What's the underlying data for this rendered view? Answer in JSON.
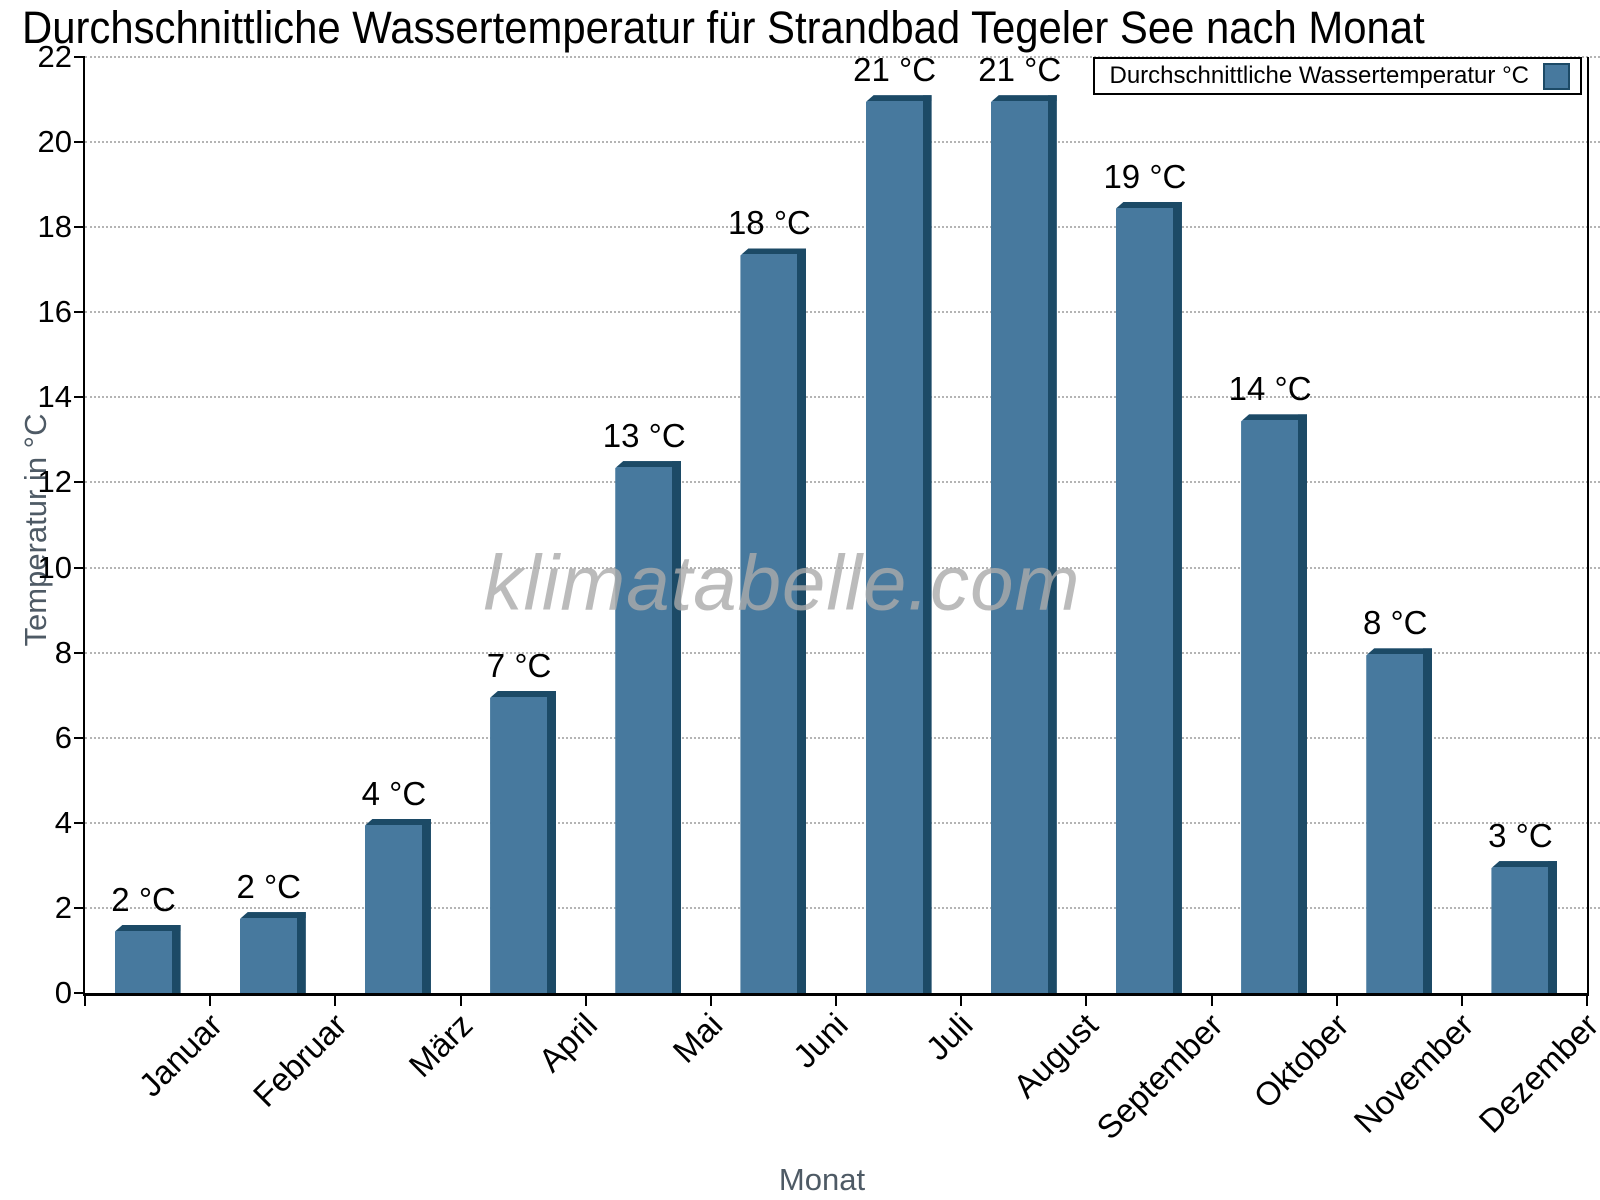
{
  "title": "Durchschnittliche Wassertemperatur für Strandbad Tegeler See nach Monat",
  "legend": {
    "label": "Durchschnittliche Wassertemperatur °C"
  },
  "watermark": "klimatabelle.com",
  "axes": {
    "y_title": "Temperatur in °C",
    "x_title": "Monat"
  },
  "colors": {
    "bar_face": "#47799e",
    "bar_edge": "#1c4a66",
    "gridline": "#b4b4b4",
    "axis": "#000000",
    "axis_title_text": "#4e5a65",
    "watermark_text": "#ababab",
    "background": "#ffffff"
  },
  "chart_data": {
    "type": "bar",
    "title": "Durchschnittliche Wassertemperatur für Strandbad Tegeler See nach Monat",
    "series_name": "Durchschnittliche Wassertemperatur °C",
    "categories": [
      "Januar",
      "Februar",
      "März",
      "April",
      "Mai",
      "Juni",
      "Juli",
      "August",
      "September",
      "Oktober",
      "November",
      "Dezember"
    ],
    "values": [
      1.6,
      1.9,
      4.1,
      7.1,
      12.5,
      17.5,
      21.1,
      21.1,
      18.6,
      13.6,
      8.1,
      3.1
    ],
    "data_labels": [
      "2 °C",
      "2 °C",
      "4 °C",
      "7 °C",
      "13 °C",
      "18 °C",
      "21 °C",
      "21 °C",
      "19 °C",
      "14 °C",
      "8 °C",
      "3 °C"
    ],
    "xlabel": "Monat",
    "ylabel": "Temperatur in °C",
    "ylim": [
      0,
      22
    ],
    "ytick_step": 2,
    "yticks": [
      0,
      2,
      4,
      6,
      8,
      10,
      12,
      14,
      16,
      18,
      20,
      22
    ],
    "grid": true,
    "gridline_style": "dotted",
    "legend_position": "top-right",
    "bar_label_unit": "°C"
  }
}
